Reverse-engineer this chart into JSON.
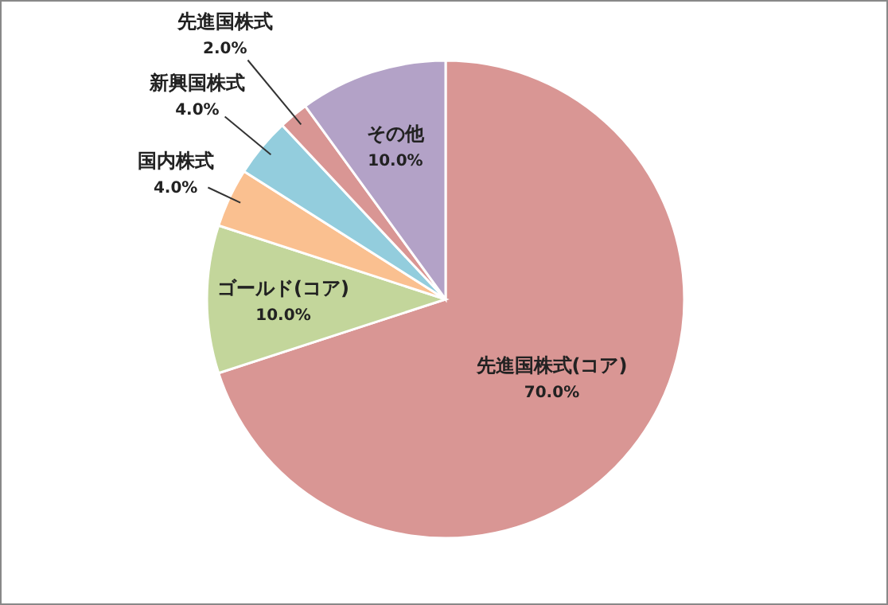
{
  "chart_data": {
    "type": "pie",
    "categories": [
      "先進国株式(コア)",
      "ゴールド(コア)",
      "国内株式",
      "新興国株式",
      "先進国株式",
      "その他"
    ],
    "values": [
      70,
      10,
      4,
      4,
      2,
      10
    ],
    "colors": [
      "#d99694",
      "#c3d69b",
      "#fac090",
      "#93cddd",
      "#d99694",
      "#b3a2c7"
    ],
    "value_labels": [
      "70.0%",
      "10.0%",
      "4.0%",
      "4.0%",
      "2.0%",
      "10.0%"
    ]
  }
}
